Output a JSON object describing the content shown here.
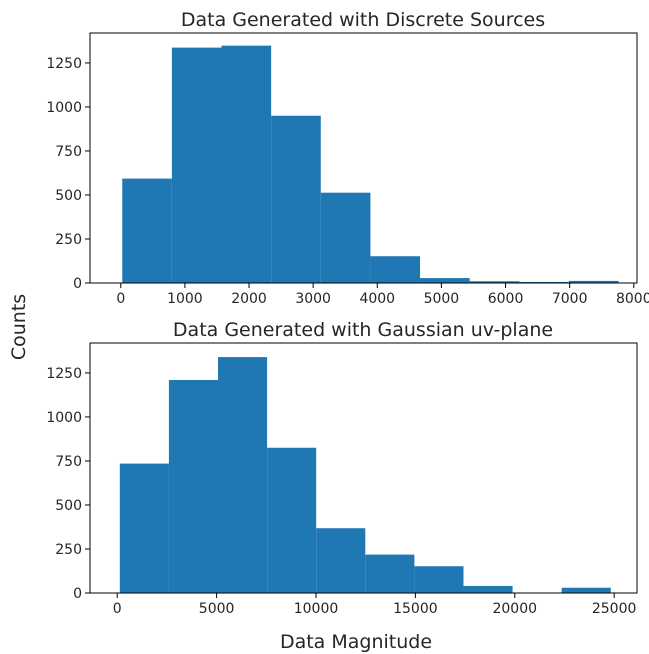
{
  "figure": {
    "ylabel": "Counts",
    "xlabel": "Data Magnitude"
  },
  "chart_data": [
    {
      "type": "bar",
      "title": "Data Generated with Discrete Sources",
      "xlabel": "",
      "ylabel": "",
      "bin_edges": [
        23,
        797,
        1571,
        2345,
        3119,
        3893,
        4667,
        5441,
        6215,
        6989,
        7763
      ],
      "counts": [
        593,
        1337,
        1348,
        950,
        513,
        152,
        28,
        10,
        6,
        12
      ],
      "xlim": [
        -480,
        8050
      ],
      "ylim": [
        0,
        1420
      ],
      "xticks": [
        0,
        1000,
        2000,
        3000,
        4000,
        5000,
        6000,
        7000,
        8000
      ],
      "yticks": [
        0,
        250,
        500,
        750,
        1000,
        1250
      ],
      "color": "#1f77b4"
    },
    {
      "type": "bar",
      "title": "Data Generated with Gaussian uv-plane",
      "xlabel": "",
      "ylabel": "",
      "bin_edges": [
        130,
        2600,
        5070,
        7540,
        10010,
        12480,
        14950,
        17420,
        19890,
        22360,
        24830
      ],
      "counts": [
        735,
        1210,
        1340,
        825,
        368,
        218,
        152,
        40,
        0,
        30
      ],
      "xlim": [
        -1370,
        26150
      ],
      "ylim": [
        0,
        1420
      ],
      "xticks": [
        0,
        5000,
        10000,
        15000,
        20000,
        25000
      ],
      "yticks": [
        0,
        250,
        500,
        750,
        1000,
        1250
      ],
      "color": "#1f77b4"
    }
  ]
}
